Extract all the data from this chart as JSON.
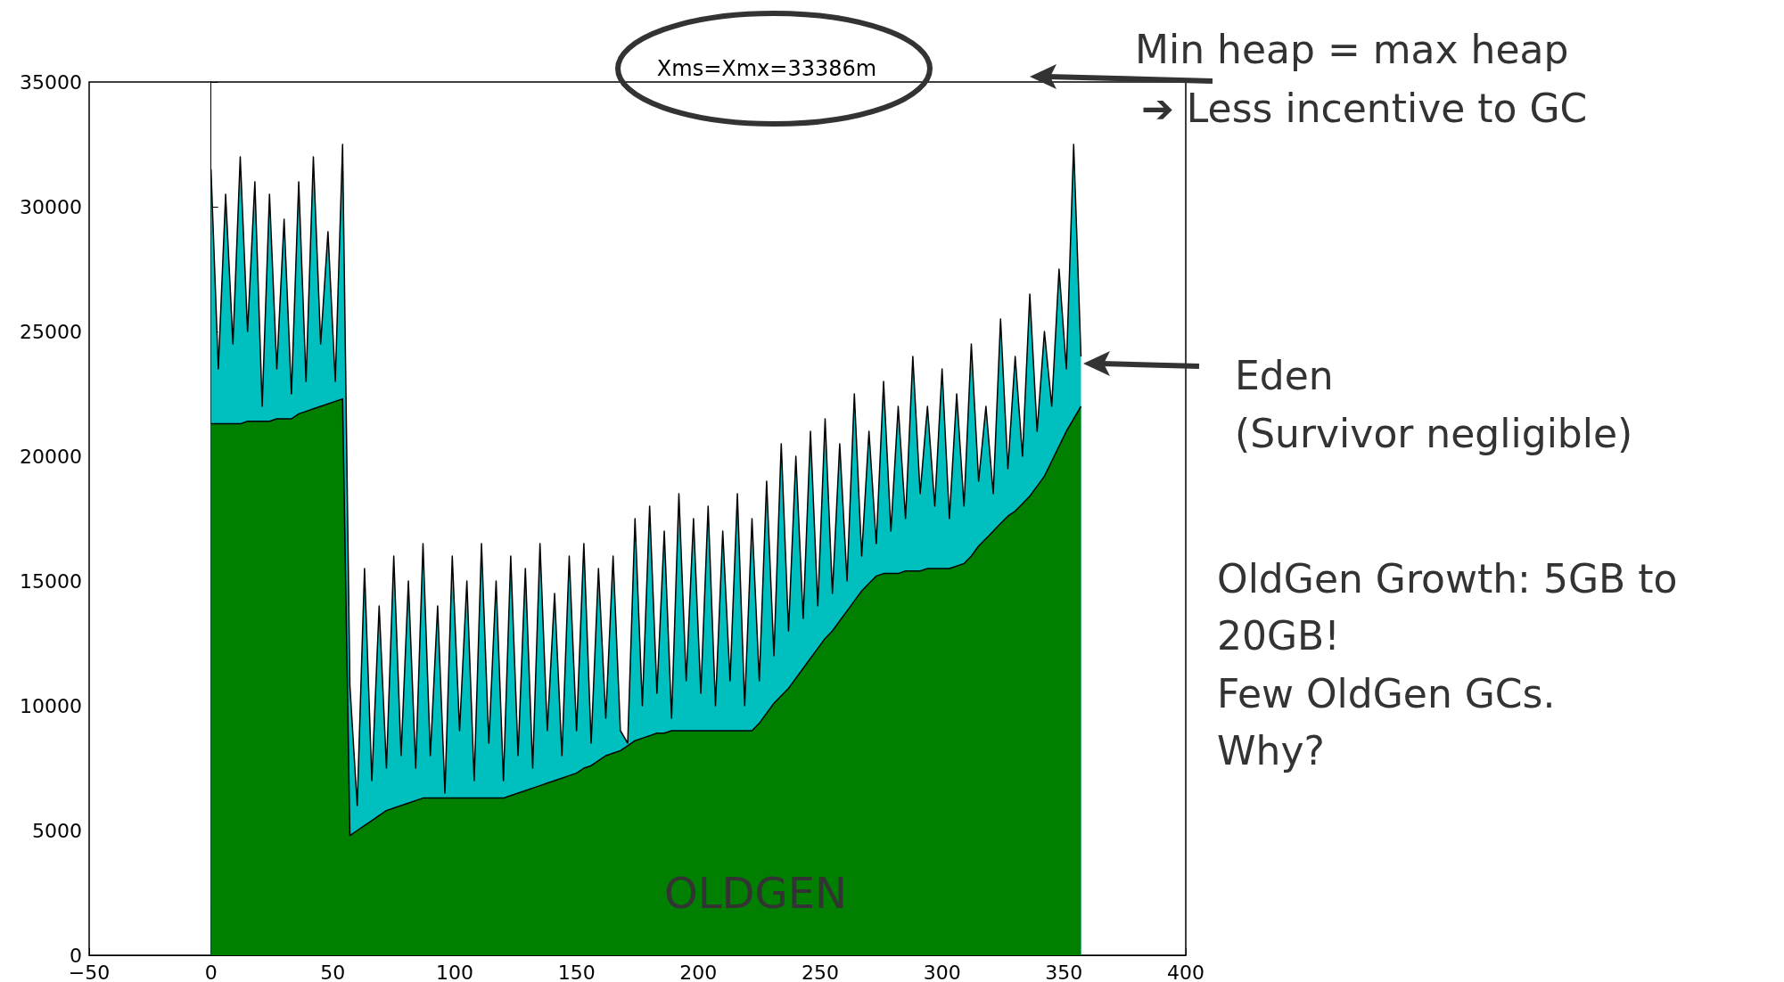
{
  "chart_data": {
    "type": "area",
    "stacked": true,
    "title": "Xms=Xmx=33386m",
    "annotations": [
      "Min heap = max heap",
      "➔ Less incentive to GC",
      "Eden",
      "(Survivor negligible)",
      "OldGen Growth: 5GB to",
      "20GB!",
      "Few OldGen GCs.",
      "Why?",
      "OLDGEN"
    ],
    "x": [
      0,
      3,
      6,
      9,
      12,
      15,
      18,
      21,
      24,
      27,
      30,
      33,
      36,
      39,
      42,
      45,
      48,
      51,
      54,
      57,
      60,
      63,
      66,
      69,
      72,
      75,
      78,
      81,
      84,
      87,
      90,
      93,
      96,
      99,
      102,
      105,
      108,
      111,
      114,
      117,
      120,
      123,
      126,
      129,
      132,
      135,
      138,
      141,
      144,
      147,
      150,
      153,
      156,
      159,
      162,
      165,
      168,
      171,
      174,
      177,
      180,
      183,
      186,
      189,
      192,
      195,
      198,
      201,
      204,
      207,
      210,
      213,
      216,
      219,
      222,
      225,
      228,
      231,
      234,
      237,
      240,
      243,
      246,
      249,
      252,
      255,
      258,
      261,
      264,
      267,
      270,
      273,
      276,
      279,
      282,
      285,
      288,
      291,
      294,
      297,
      300,
      303,
      306,
      309,
      312,
      315,
      318,
      321,
      324,
      327,
      330,
      333,
      336,
      339,
      342,
      345,
      348,
      351,
      354,
      357
    ],
    "series": [
      {
        "color": "#007f00",
        "values": [
          21300,
          21300,
          21300,
          21300,
          21300,
          21400,
          21400,
          21400,
          21400,
          21500,
          21500,
          21500,
          21700,
          21800,
          21900,
          22000,
          22100,
          22200,
          22300,
          4800,
          5000,
          5200,
          5400,
          5600,
          5800,
          5900,
          6000,
          6100,
          6200,
          6300,
          6300,
          6300,
          6300,
          6300,
          6300,
          6300,
          6300,
          6300,
          6300,
          6300,
          6300,
          6400,
          6500,
          6600,
          6700,
          6800,
          6900,
          7000,
          7100,
          7200,
          7300,
          7500,
          7600,
          7800,
          8000,
          8100,
          8200,
          8400,
          8600,
          8700,
          8800,
          8900,
          8900,
          9000,
          9000,
          9000,
          9000,
          9000,
          9000,
          9000,
          9000,
          9000,
          9000,
          9000,
          9000,
          9300,
          9700,
          10100,
          10400,
          10700,
          11100,
          11500,
          11900,
          12300,
          12700,
          13000,
          13400,
          13800,
          14200,
          14600,
          14900,
          15200,
          15300,
          15300,
          15300,
          15400,
          15400,
          15400,
          15500,
          15500,
          15500,
          15500,
          15600,
          15700,
          16000,
          16400,
          16700,
          17000,
          17300,
          17600,
          17800,
          18100,
          18400,
          18800,
          19200,
          19800,
          20400,
          21000,
          21500,
          22000
        ]
      },
      {
        "color": "#00bfbf",
        "values": [
          10200,
          2200,
          9200,
          3200,
          10700,
          3600,
          9600,
          600,
          9100,
          2000,
          8000,
          1000,
          9300,
          1200,
          10100,
          2500,
          6900,
          800,
          10200,
          6000,
          1000,
          10300,
          1600,
          8400,
          1700,
          10100,
          2000,
          8900,
          1300,
          10200,
          1700,
          7700,
          200,
          9700,
          2700,
          8700,
          700,
          10200,
          2200,
          8700,
          700,
          9600,
          1500,
          8900,
          800,
          9700,
          2100,
          7500,
          900,
          8800,
          1700,
          9000,
          900,
          7700,
          1500,
          7900,
          800,
          100,
          8900,
          1300,
          9200,
          1600,
          8100,
          500,
          9500,
          2000,
          8500,
          1500,
          9000,
          1000,
          8000,
          2000,
          9500,
          1000,
          8500,
          1700,
          9300,
          1900,
          10100,
          2300,
          8900,
          2000,
          9100,
          1700,
          8800,
          1500,
          7100,
          1200,
          8300,
          1400,
          6100,
          1300,
          7700,
          1700,
          6700,
          2100,
          8600,
          3100,
          6500,
          2500,
          8000,
          2000,
          6900,
          2300,
          8500,
          2600,
          5300,
          1500,
          8200,
          1900,
          6200,
          1900,
          8100,
          2200,
          5800,
          2200,
          7100,
          2500,
          11000,
          2000
        ]
      }
    ],
    "xlim": [
      -50,
      400
    ],
    "xticks": [
      {
        "value": -50,
        "label": "−50"
      },
      0,
      50,
      100,
      150,
      200,
      250,
      300,
      350,
      400
    ],
    "ylim": [
      0,
      35000
    ],
    "yticks": [
      0,
      5000,
      10000,
      15000,
      20000,
      25000,
      30000,
      35000
    ],
    "marker": "none",
    "line_style": "solid"
  }
}
